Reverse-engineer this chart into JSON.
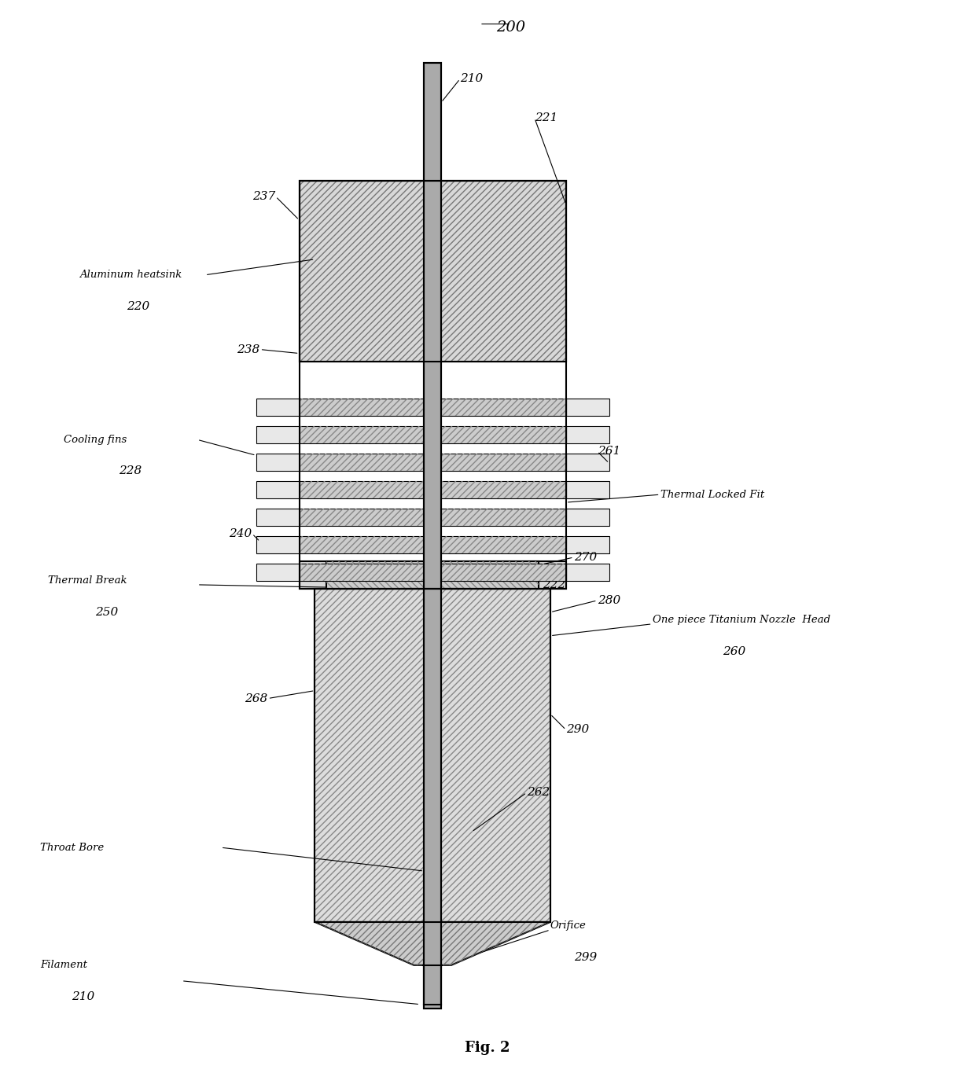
{
  "bg_color": "#ffffff",
  "line_color": "#000000",
  "hatch_color": "#555555",
  "fig_label": "Fig. 2",
  "title_ref": "200",
  "components": {
    "filament_ref": "210",
    "heatsink_top_ref": "221",
    "heatsink_label": "Aluminum heatsink",
    "heatsink_ref": "220",
    "heatsink_top_section_ref": "237",
    "heatsink_mid_ref": "238",
    "fins_label": "Cooling fins",
    "fins_ref": "228",
    "bottom_heatsink_ref": "240",
    "thermal_break_label": "Thermal Break",
    "thermal_break_ref": "250",
    "nozzle_body_ref": "261",
    "thermal_locked_fit_label": "Thermal Locked Fit",
    "transition_ref": "270",
    "collar_ref": "222",
    "heater_block_ref": "280",
    "one_piece_nozzle_label": "One piece Titanium Nozzle  Head",
    "one_piece_nozzle_ref": "260",
    "nozzle_body2_ref": "268",
    "nozzle_taper_ref": "290",
    "nozzle_tip_ref": "262",
    "throat_bore_label": "Throat Bore",
    "orifice_label": "Orifice",
    "orifice_ref": "299",
    "filament_label": "Filament",
    "filament_ref2": "210"
  }
}
